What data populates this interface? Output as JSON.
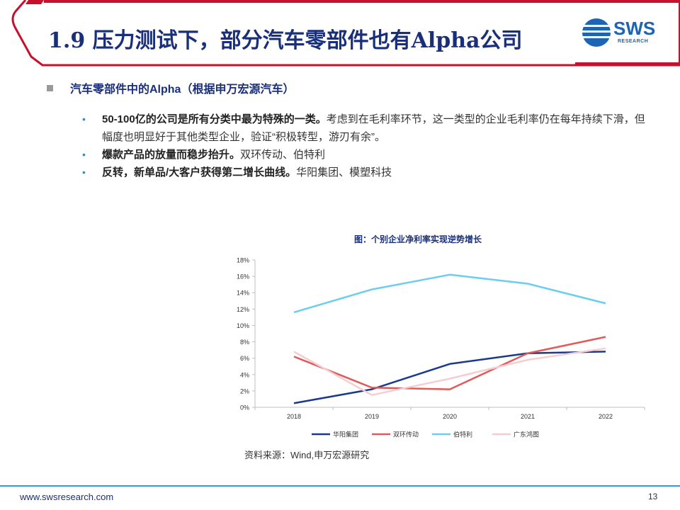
{
  "slide": {
    "title": "1.9 压力测试下，部分汽车零部件也有Alpha公司",
    "logo": {
      "name": "SWS",
      "sub": "RESEARCH"
    },
    "section_heading": "汽车零部件中的Alpha（根据申万宏源汽车）",
    "bullets": [
      {
        "bold": "50-100亿的公司是所有分类中最为特殊的一类。",
        "text": "考虑到在毛利率环节，这一类型的企业毛利率仍在每年持续下滑，但幅度也明显好于其他类型企业，验证“积极转型，游刃有余”。"
      },
      {
        "bold": "爆款产品的放量而稳步抬升。",
        "text": "双环传动、伯特利"
      },
      {
        "bold": "反转，新单品/大客户获得第二增长曲线。",
        "text": "华阳集团、模塑科技"
      }
    ],
    "source": "资料来源：Wind,申万宏源研究",
    "footer_url": "www.swsresearch.com",
    "page_number": "13"
  },
  "chart_data": {
    "type": "line",
    "title": "图：个别企业净利率实现逆势增长",
    "x": [
      "2018",
      "2019",
      "2020",
      "2021",
      "2022"
    ],
    "ylim": [
      0,
      18
    ],
    "yticks": [
      "0%",
      "2%",
      "4%",
      "6%",
      "8%",
      "10%",
      "12%",
      "14%",
      "16%",
      "18%"
    ],
    "grid": false,
    "legend_position": "bottom",
    "series": [
      {
        "name": "华阳集团",
        "color": "#1b3a8c",
        "values": [
          0.5,
          2.2,
          5.3,
          6.6,
          6.8
        ]
      },
      {
        "name": "双环传动",
        "color": "#e05a5a",
        "values": [
          6.2,
          2.4,
          2.2,
          6.6,
          8.6
        ]
      },
      {
        "name": "伯特利",
        "color": "#6ccdf0",
        "values": [
          11.6,
          14.4,
          16.2,
          15.1,
          12.7
        ]
      },
      {
        "name": "广东鸿图",
        "color": "#f5cdd0",
        "values": [
          6.8,
          1.5,
          3.5,
          5.8,
          7.2
        ]
      }
    ]
  }
}
